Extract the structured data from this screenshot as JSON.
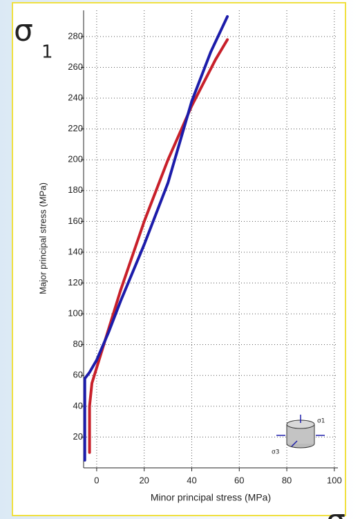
{
  "chart_data": {
    "type": "line",
    "x_label": "Minor principal stress (MPa)",
    "y_label": "Major principal stress (MPa)",
    "annotations": [
      "σ",
      "1",
      "σ",
      "σ1",
      "σ3"
    ],
    "xlim": [
      -5.5,
      101.5
    ],
    "ylim": [
      0,
      297
    ],
    "xticks": [
      0,
      20,
      40,
      60,
      80,
      100
    ],
    "yticks": [
      20,
      40,
      60,
      80,
      100,
      120,
      140,
      160,
      180,
      200,
      220,
      240,
      260,
      280
    ],
    "grid": true,
    "series": [
      {
        "color": "#c8202a",
        "x": [
          -3,
          -3,
          -2,
          0,
          2,
          5,
          10,
          20,
          30,
          40,
          50,
          55
        ],
        "values": [
          10,
          40,
          55,
          65,
          75,
          90,
          115,
          160,
          200,
          235,
          265,
          278
        ]
      },
      {
        "color": "#1c1caa",
        "x": [
          -5,
          -5,
          -3,
          0,
          5,
          10,
          20,
          30,
          40,
          48,
          55
        ],
        "values": [
          5,
          58,
          62,
          70,
          88,
          108,
          145,
          185,
          238,
          270,
          293
        ]
      }
    ]
  }
}
